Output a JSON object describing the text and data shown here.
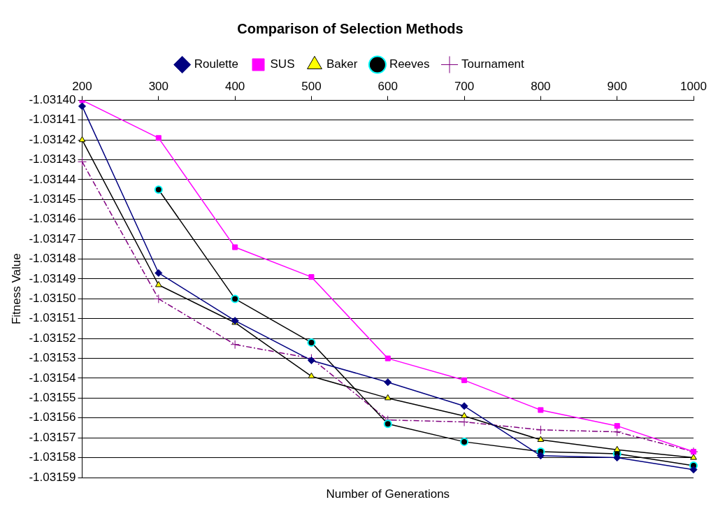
{
  "chart_data": {
    "type": "line",
    "title": "Comparison of Selection Methods",
    "xlabel": "Number of Generations",
    "ylabel": "Fitness Value",
    "categories": [
      "200",
      "300",
      "400",
      "500",
      "600",
      "700",
      "800",
      "900",
      "1000"
    ],
    "series": [
      {
        "name": "Roulette",
        "color": "#000080",
        "marker": "diamond",
        "values": [
          -1.031403,
          -1.031487,
          -1.031511,
          -1.031531,
          -1.031542,
          -1.031554,
          -1.031579,
          -1.03158,
          -1.031586
        ]
      },
      {
        "name": "SUS",
        "color": "#ff00ff",
        "marker": "square",
        "values": [
          -1.0314,
          -1.031419,
          -1.031474,
          -1.031489,
          -1.03153,
          -1.031541,
          -1.031556,
          -1.031564,
          -1.031577
        ]
      },
      {
        "name": "Baker",
        "color": "#000000",
        "marker": "triangle",
        "values": [
          -1.03142,
          -1.031493,
          -1.031512,
          -1.031539,
          -1.03155,
          -1.031559,
          -1.031571,
          -1.031576,
          -1.03158
        ]
      },
      {
        "name": "Reeves",
        "color": "#000000",
        "marker": "circle",
        "values": [
          null,
          -1.031445,
          -1.0315,
          -1.031522,
          -1.031563,
          -1.031572,
          -1.031577,
          -1.031578,
          -1.031584
        ]
      },
      {
        "name": "Tournament",
        "color": "#800080",
        "marker": "cross",
        "line_style": "dashed",
        "values": [
          -1.031431,
          -1.0315,
          -1.031523,
          -1.03153,
          -1.031561,
          -1.031562,
          -1.031566,
          -1.031567,
          -1.031577
        ]
      }
    ],
    "ylim": [
      -1.03159,
      -1.0314
    ],
    "yticks": [
      {
        "value": -1.0314,
        "label": "-1.03140"
      },
      -1.03141,
      -1.03142,
      -1.03143,
      -1.03144,
      -1.03145,
      -1.03146,
      -1.03147,
      -1.03148,
      -1.03149,
      {
        "value": -1.0315,
        "label": "-1.03150"
      },
      -1.03151,
      -1.03152,
      -1.03153,
      -1.03154,
      -1.03155,
      -1.03156,
      -1.03157,
      -1.03158,
      -1.03159
    ],
    "grid": "y",
    "legend": "top"
  }
}
